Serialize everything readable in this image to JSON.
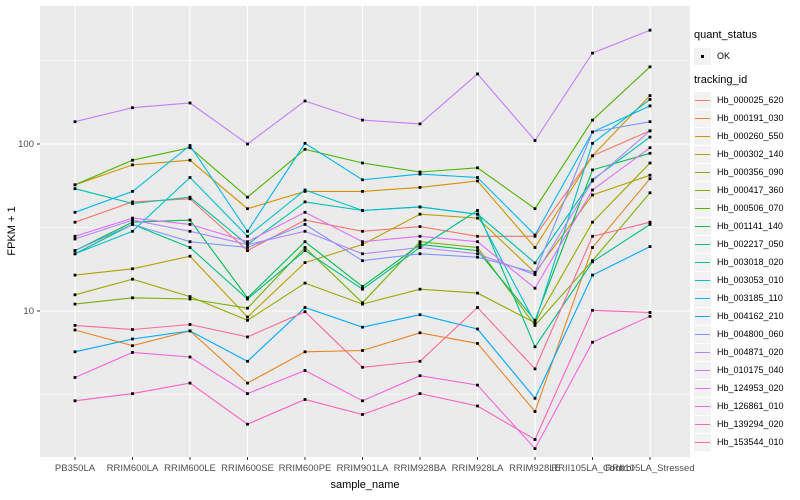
{
  "figure_type": "ggplot-line-chart",
  "axes": {
    "y_title": "FPKM + 1",
    "x_title": "sample_name",
    "y_ticks": [
      {
        "label": "100",
        "value": 100
      },
      {
        "label": "10",
        "value": 10
      }
    ]
  },
  "legend": {
    "quant_status": {
      "title": "quant_status",
      "items": [
        {
          "label": "OK",
          "marker": "black-point"
        }
      ]
    },
    "tracking_id": {
      "title": "tracking_id",
      "items": [
        {
          "label": "Hb_000025_620",
          "color": "#F8766D"
        },
        {
          "label": "Hb_000191_030",
          "color": "#E88526"
        },
        {
          "label": "Hb_000260_550",
          "color": "#D39200"
        },
        {
          "label": "Hb_000302_140",
          "color": "#B79F00"
        },
        {
          "label": "Hb_000356_090",
          "color": "#99A800"
        },
        {
          "label": "Hb_000417_360",
          "color": "#7CAE00"
        },
        {
          "label": "Hb_000506_070",
          "color": "#49B500"
        },
        {
          "label": "Hb_001141_140",
          "color": "#00BB4E"
        },
        {
          "label": "Hb_002217_050",
          "color": "#00BF81"
        },
        {
          "label": "Hb_003018_020",
          "color": "#00C1A7"
        },
        {
          "label": "Hb_003053_010",
          "color": "#00BDD2"
        },
        {
          "label": "Hb_003185_110",
          "color": "#00B5EC"
        },
        {
          "label": "Hb_004162_210",
          "color": "#00A7FF"
        },
        {
          "label": "Hb_004800_060",
          "color": "#7E96FF"
        },
        {
          "label": "Hb_004871_020",
          "color": "#AE87FF"
        },
        {
          "label": "Hb_010175_040",
          "color": "#C77CFF"
        },
        {
          "label": "Hb_124953_020",
          "color": "#E26EF7"
        },
        {
          "label": "Hb_126861_010",
          "color": "#F763E0"
        },
        {
          "label": "Hb_139294_020",
          "color": "#FF62BA"
        },
        {
          "label": "Hb_153544_010",
          "color": "#FF6B94"
        }
      ]
    }
  },
  "chart_data": {
    "type": "line",
    "title": "",
    "xlabel": "sample_name",
    "ylabel": "FPKM + 1",
    "yscale": "log10",
    "ylim": [
      1.34,
      670
    ],
    "yticks": [
      10,
      100
    ],
    "minor_gridlines": [
      3.162,
      31.62,
      316.2
    ],
    "grid": "white on grey panel",
    "panel_background": "#EBEBEB",
    "legend_position": "right",
    "marker": "small black square (quant_status = OK)",
    "x": [
      "PB350LA",
      "RRIM600LA",
      "RRIM600LE",
      "RRIM600SE",
      "RRIM600PE",
      "RRIM901LA",
      "RRIM928BA",
      "RRIM928LA",
      "RRIM928LE",
      "RRII105LA_Control",
      "RRII105LA_Stressed"
    ],
    "series": [
      {
        "name": "Hb_000025_620",
        "color": "#F8766D",
        "values": [
          34,
          45,
          47,
          23,
          35,
          30,
          32,
          28,
          28,
          85,
          120
        ]
      },
      {
        "name": "Hb_000191_030",
        "color": "#E88526",
        "values": [
          7.7,
          6.2,
          7.6,
          3.7,
          5.7,
          5.8,
          7.4,
          6.4,
          2.5,
          24,
          62
        ]
      },
      {
        "name": "Hb_000260_550",
        "color": "#D39200",
        "values": [
          57,
          75,
          80,
          41,
          52,
          52,
          55,
          60,
          24,
          85,
          195
        ]
      },
      {
        "name": "Hb_000302_140",
        "color": "#B79F00",
        "values": [
          16.4,
          17.9,
          21.3,
          9.2,
          19.5,
          25,
          38,
          36,
          17,
          49.5,
          65
        ]
      },
      {
        "name": "Hb_000356_090",
        "color": "#99A800",
        "values": [
          12.5,
          15.5,
          12.2,
          8.8,
          14.7,
          11,
          13.5,
          12.8,
          8.5,
          34,
          77
        ]
      },
      {
        "name": "Hb_000417_360",
        "color": "#7CAE00",
        "values": [
          11,
          12,
          11.8,
          10.4,
          24,
          11.2,
          26,
          24,
          8.2,
          20,
          51
        ]
      },
      {
        "name": "Hb_000506_070",
        "color": "#49B500",
        "values": [
          57,
          80,
          95,
          48,
          93,
          77,
          68,
          72,
          41,
          139,
          290
        ]
      },
      {
        "name": "Hb_001141_140",
        "color": "#00BB4E",
        "values": [
          23,
          34,
          35,
          12,
          26,
          14,
          25,
          23,
          8.8,
          70,
          88
        ]
      },
      {
        "name": "Hb_002217_050",
        "color": "#00BF81",
        "values": [
          22,
          33,
          24,
          11.8,
          23,
          13.5,
          24,
          40,
          6.1,
          19.7,
          33
        ]
      },
      {
        "name": "Hb_003018_020",
        "color": "#00C1A7",
        "values": [
          54,
          44,
          48,
          25,
          45,
          40,
          42,
          38,
          19.4,
          61,
          110
        ]
      },
      {
        "name": "Hb_003053_010",
        "color": "#00BDD2",
        "values": [
          22,
          30,
          63,
          28,
          53,
          40,
          42,
          38,
          8.5,
          101,
          185
        ]
      },
      {
        "name": "Hb_003185_110",
        "color": "#00B5EC",
        "values": [
          39,
          52,
          98,
          30,
          101,
          61,
          66,
          63,
          28.5,
          118,
          169
        ]
      },
      {
        "name": "Hb_004162_210",
        "color": "#00A7FF",
        "values": [
          5.7,
          6.8,
          7.6,
          5.0,
          10.5,
          8,
          9.5,
          7.8,
          3.0,
          16.4,
          24.3
        ]
      },
      {
        "name": "Hb_004800_060",
        "color": "#7E96FF",
        "values": [
          23,
          33,
          26,
          24,
          33,
          20,
          22,
          21,
          17,
          118,
          136
        ]
      },
      {
        "name": "Hb_004871_020",
        "color": "#AE87FF",
        "values": [
          27,
          35,
          30,
          25,
          30,
          22,
          24,
          22,
          16.5,
          60,
          120
        ]
      },
      {
        "name": "Hb_010175_040",
        "color": "#C77CFF",
        "values": [
          136,
          165,
          176,
          100,
          181,
          139,
          132,
          263,
          105,
          350,
          480
        ]
      },
      {
        "name": "Hb_124953_020",
        "color": "#E26EF7",
        "values": [
          28,
          36,
          33,
          26,
          39,
          26,
          28,
          26,
          13.7,
          53,
          95
        ]
      },
      {
        "name": "Hb_126861_010",
        "color": "#F763E0",
        "values": [
          4.0,
          5.65,
          5.3,
          3.2,
          4.4,
          2.9,
          4.1,
          3.6,
          1.5,
          6.5,
          9.3
        ]
      },
      {
        "name": "Hb_139294_020",
        "color": "#FF62BA",
        "values": [
          2.9,
          3.2,
          3.7,
          2.1,
          2.95,
          2.4,
          3.2,
          2.7,
          1.7,
          10.1,
          9.8
        ]
      },
      {
        "name": "Hb_153544_010",
        "color": "#FF6B94",
        "values": [
          8.2,
          7.75,
          8.3,
          7.0,
          9.9,
          4.6,
          5.0,
          10.5,
          4.5,
          28,
          34
        ]
      }
    ]
  }
}
